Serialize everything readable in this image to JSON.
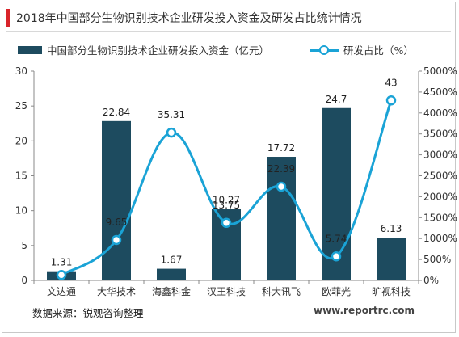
{
  "title": "2018年中国部分生物识别技术企业研发投入资金及研发占比统计情况",
  "source": "数据来源：锐观咨询整理",
  "watermark": "www.reportrc.com",
  "colors": {
    "bar": "#1d4b5f",
    "line": "#1aa3d6",
    "title_accent": "#d9242a"
  },
  "chart_data": {
    "type": "bar",
    "categories": [
      "文达通",
      "大华技术",
      "海鑫科金",
      "汉王科技",
      "科大讯飞",
      "欧菲光",
      "旷视科技"
    ],
    "series": [
      {
        "name": "中国部分生物识别技术企业研发投入资金（亿元）",
        "type": "bar",
        "axis": "left",
        "values": [
          1.31,
          22.84,
          1.67,
          10.27,
          17.72,
          24.7,
          6.13
        ],
        "labels": [
          "1.31",
          "22.84",
          "1.67",
          "10.27",
          "17.72",
          "24.7",
          "6.13"
        ]
      },
      {
        "name": "研发占比（%）",
        "type": "line",
        "axis": "right",
        "smooth": true,
        "values": [
          1.31,
          9.65,
          35.31,
          13.75,
          22.39,
          5.74,
          43
        ],
        "labels": [
          "",
          "9.65",
          "35.31",
          "13.75",
          "22.39",
          "5.74",
          "43"
        ]
      }
    ],
    "y_left": {
      "min": 0,
      "max": 30,
      "step": 5,
      "ticks": [
        "0",
        "5",
        "10",
        "15",
        "20",
        "25",
        "30"
      ]
    },
    "y_right": {
      "min": 0,
      "max": 5000,
      "step": 500,
      "ticks": [
        "0%",
        "500%",
        "1000%",
        "1500%",
        "2000%",
        "2500%",
        "3000%",
        "3500%",
        "4000%",
        "4500%",
        "5000%"
      ]
    },
    "grid": false,
    "legend": "top"
  }
}
